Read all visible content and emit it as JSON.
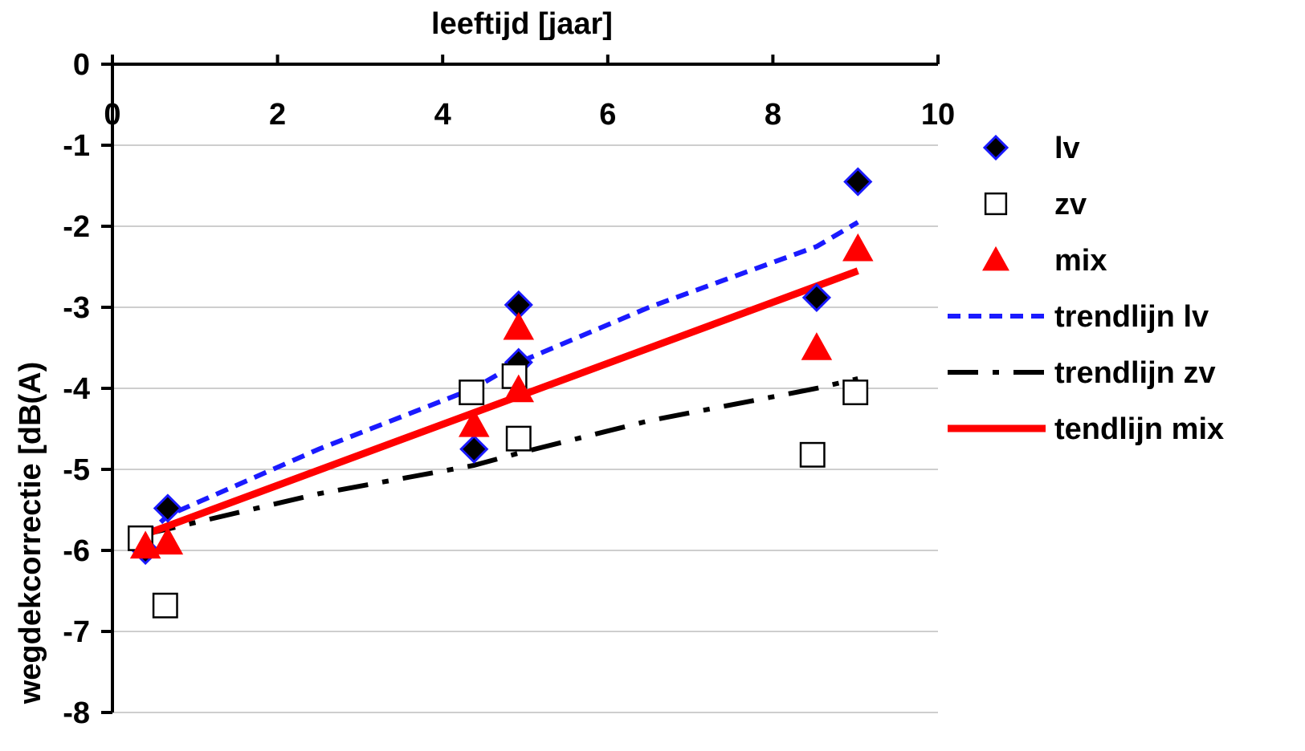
{
  "chart_data": {
    "type": "scatter",
    "xlabel": "leeftijd [jaar]",
    "ylabel": "wegdekcorrectie [dB(A)",
    "xlim": [
      0,
      10
    ],
    "ylim": [
      -8,
      0
    ],
    "x_ticks": [
      0,
      2,
      4,
      6,
      8,
      10
    ],
    "y_ticks": [
      0,
      -1,
      -2,
      -3,
      -4,
      -5,
      -6,
      -7,
      -8
    ],
    "x_axis_position": "top",
    "grid": "horizontal",
    "legend_position": "right",
    "series": [
      {
        "name": "lv",
        "kind": "points",
        "marker": "diamond",
        "color": "#1a1aff",
        "fill": "#000000",
        "points": [
          {
            "x": 0.4,
            "y": -6.0
          },
          {
            "x": 0.67,
            "y": -5.48
          },
          {
            "x": 4.38,
            "y": -4.75
          },
          {
            "x": 4.92,
            "y": -2.97
          },
          {
            "x": 4.92,
            "y": -3.68
          },
          {
            "x": 8.53,
            "y": -2.88
          },
          {
            "x": 9.03,
            "y": -1.45
          }
        ]
      },
      {
        "name": "zv",
        "kind": "points",
        "marker": "square",
        "color": "#000000",
        "fill": "#ffffff",
        "points": [
          {
            "x": 0.34,
            "y": -5.85
          },
          {
            "x": 0.64,
            "y": -6.68
          },
          {
            "x": 4.35,
            "y": -4.05
          },
          {
            "x": 4.87,
            "y": -3.85
          },
          {
            "x": 4.92,
            "y": -4.62
          },
          {
            "x": 8.48,
            "y": -4.82
          },
          {
            "x": 9.0,
            "y": -4.05
          }
        ]
      },
      {
        "name": "mix",
        "kind": "points",
        "marker": "triangle",
        "color": "#ff0000",
        "fill": "#ff0000",
        "points": [
          {
            "x": 0.4,
            "y": -5.95
          },
          {
            "x": 0.67,
            "y": -5.9
          },
          {
            "x": 4.38,
            "y": -4.45
          },
          {
            "x": 4.92,
            "y": -3.25
          },
          {
            "x": 4.92,
            "y": -4.02
          },
          {
            "x": 8.53,
            "y": -3.5
          },
          {
            "x": 9.03,
            "y": -2.28
          }
        ]
      },
      {
        "name": "trendlijn lv",
        "kind": "line",
        "dash": "dotted",
        "color": "#1a1aff",
        "points": [
          {
            "x": 0.4,
            "y": -5.83
          },
          {
            "x": 0.67,
            "y": -5.57
          },
          {
            "x": 2.5,
            "y": -4.75
          },
          {
            "x": 4.38,
            "y": -4.0
          },
          {
            "x": 4.92,
            "y": -3.68
          },
          {
            "x": 6.5,
            "y": -3.0
          },
          {
            "x": 8.53,
            "y": -2.25
          },
          {
            "x": 9.03,
            "y": -1.95
          }
        ]
      },
      {
        "name": "trendlijn zv",
        "kind": "line",
        "dash": "dashdot",
        "color": "#000000",
        "points": [
          {
            "x": 0.4,
            "y": -5.8
          },
          {
            "x": 2.5,
            "y": -5.3
          },
          {
            "x": 4.38,
            "y": -4.95
          },
          {
            "x": 4.92,
            "y": -4.8
          },
          {
            "x": 6.5,
            "y": -4.4
          },
          {
            "x": 8.53,
            "y": -4.0
          },
          {
            "x": 9.03,
            "y": -3.88
          }
        ]
      },
      {
        "name": "tendlijn mix",
        "kind": "line",
        "dash": "solid",
        "color": "#ff0000",
        "points": [
          {
            "x": 0.4,
            "y": -5.8
          },
          {
            "x": 9.03,
            "y": -2.55
          }
        ]
      }
    ]
  }
}
